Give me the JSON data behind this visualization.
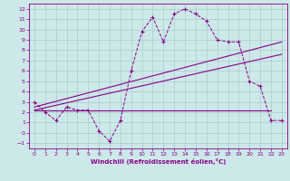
{
  "xlabel": "Windchill (Refroidissement éolien,°C)",
  "bg_color": "#cce8e8",
  "line_color": "#880088",
  "grid_color": "#aacccc",
  "xlim": [
    -0.5,
    23.5
  ],
  "ylim": [
    -1.5,
    12.5
  ],
  "xticks": [
    0,
    1,
    2,
    3,
    4,
    5,
    6,
    7,
    8,
    9,
    10,
    11,
    12,
    13,
    14,
    15,
    16,
    17,
    18,
    19,
    20,
    21,
    22,
    23
  ],
  "yticks": [
    -1,
    0,
    1,
    2,
    3,
    4,
    5,
    6,
    7,
    8,
    9,
    10,
    11,
    12
  ],
  "curve1_x": [
    0,
    1,
    2,
    3,
    4,
    5,
    6,
    7,
    8,
    9,
    10,
    11,
    12,
    13,
    14,
    15,
    16,
    17,
    18,
    19,
    20,
    21,
    22,
    23
  ],
  "curve1_y": [
    3,
    2,
    1.2,
    2.5,
    2.2,
    2.2,
    0.2,
    -0.8,
    1.2,
    6.0,
    9.8,
    11.2,
    8.8,
    11.5,
    12.0,
    11.5,
    10.8,
    9.0,
    8.8,
    8.8,
    5.0,
    4.5,
    1.2,
    1.2
  ],
  "line1_x": [
    0,
    23
  ],
  "line1_y": [
    2.5,
    8.8
  ],
  "line2_x": [
    0,
    23
  ],
  "line2_y": [
    2.2,
    7.6
  ],
  "line3_x": [
    0,
    22
  ],
  "line3_y": [
    2.2,
    2.2
  ]
}
